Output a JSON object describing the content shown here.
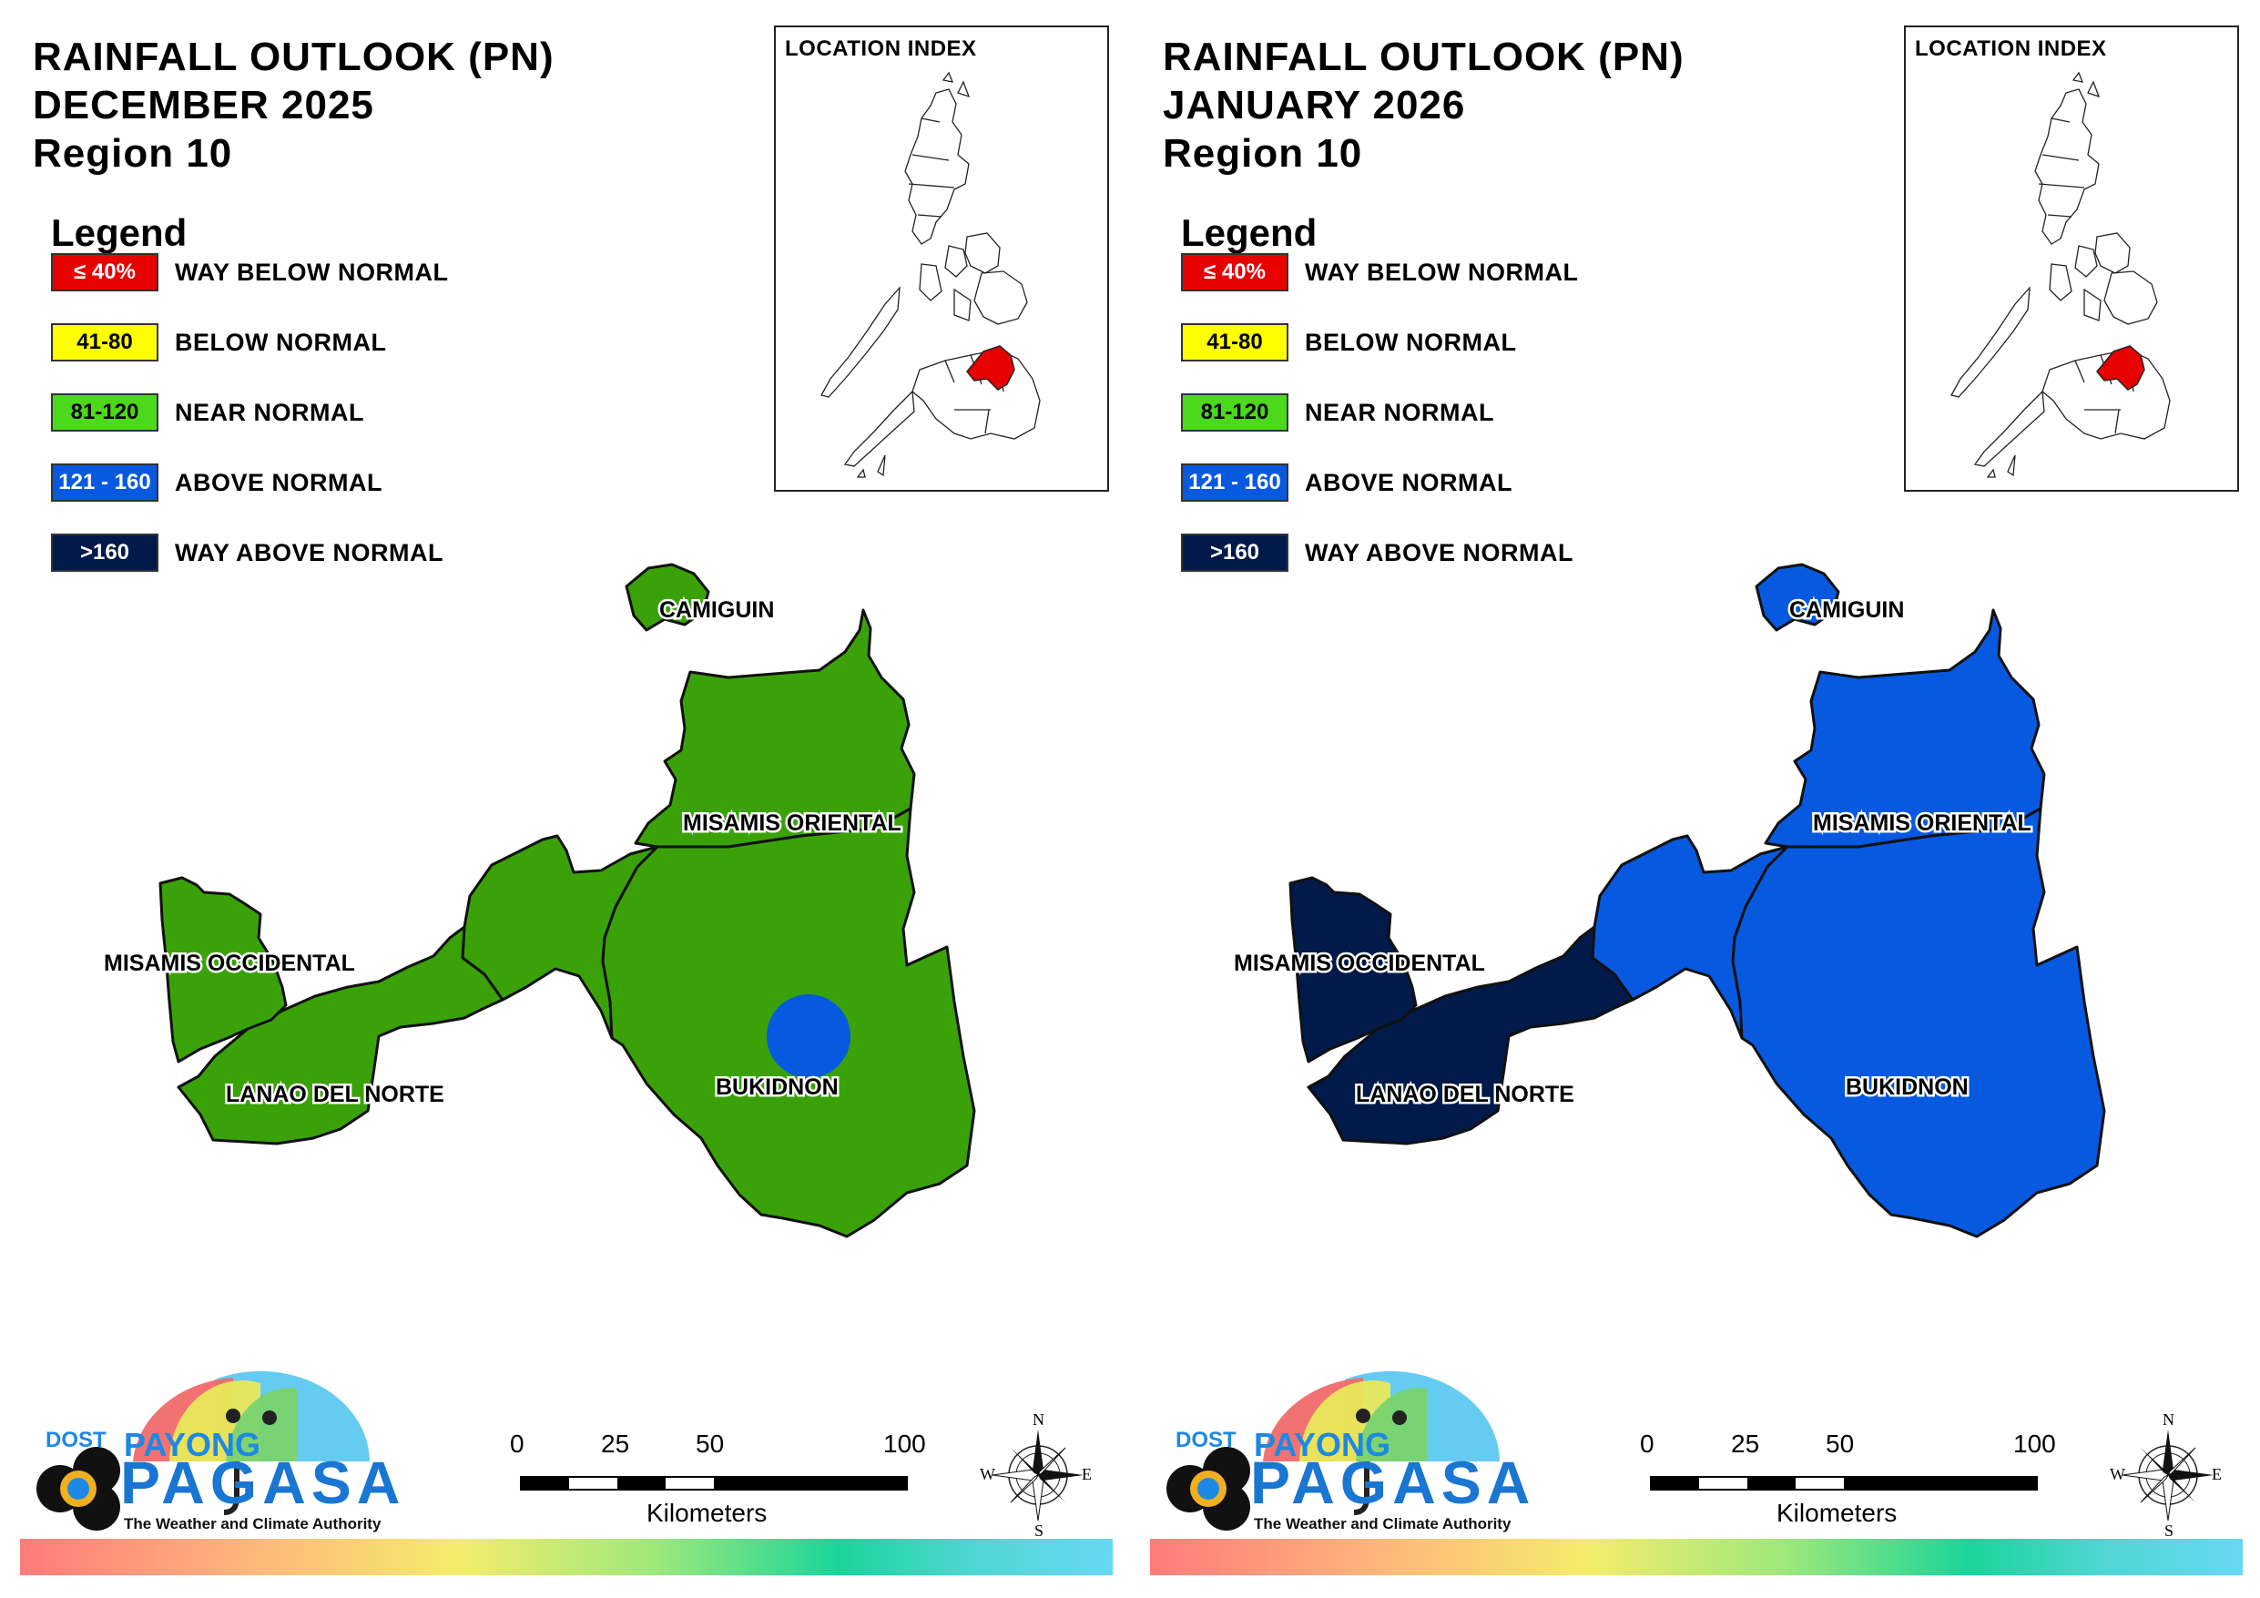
{
  "panels": [
    {
      "title_line1": "RAINFALL OUTLOOK (PN)",
      "title_line2": "DECEMBER 2025",
      "title_line3": "Region 10",
      "province_colors": {
        "camiguin": "#3aa208",
        "misamis_oriental": "#3aa208",
        "misamis_occidental": "#3aa208",
        "lanao_del_norte_w": "#3aa208",
        "lanao_del_norte_e": "#3aa208",
        "bukidnon": "#3aa208",
        "bukidnon_spot": "#0759e0"
      }
    },
    {
      "title_line1": "RAINFALL OUTLOOK (PN)",
      "title_line2": "JANUARY 2026",
      "title_line3": "Region 10",
      "province_colors": {
        "camiguin": "#0759e0",
        "misamis_oriental": "#0759e0",
        "misamis_occidental": "#011a4a",
        "lanao_del_norte_w": "#011a4a",
        "lanao_del_norte_e": "#0759e0",
        "bukidnon": "#0759e0",
        "bukidnon_spot": "#0759e0"
      }
    }
  ],
  "legend": {
    "title": "Legend",
    "items": [
      {
        "range": "≤ 40%",
        "label": "WAY BELOW NORMAL",
        "color": "#e60000",
        "text_color": "#ffffff"
      },
      {
        "range": "41-80",
        "label": "BELOW NORMAL",
        "color": "#ffff00",
        "text_color": "#000000"
      },
      {
        "range": "81-120",
        "label": "NEAR NORMAL",
        "color": "#4cd91c",
        "text_color": "#000000"
      },
      {
        "range": "121 - 160",
        "label": "ABOVE NORMAL",
        "color": "#0759e0",
        "text_color": "#ffffff"
      },
      {
        "range": ">160",
        "label": "WAY ABOVE NORMAL",
        "color": "#011a4a",
        "text_color": "#ffffff"
      }
    ]
  },
  "inset": {
    "title": "LOCATION INDEX",
    "highlight_color": "#e60000"
  },
  "province_labels": {
    "camiguin": "CAMIGUIN",
    "misamis_oriental": "MISAMIS ORIENTAL",
    "misamis_occidental": "MISAMIS OCCIDENTAL",
    "lanao_del_norte": "LANAO DEL NORTE",
    "bukidnon": "BUKIDNON"
  },
  "scale": {
    "ticks": [
      "0",
      "25",
      "50",
      "100"
    ],
    "unit": "Kilometers"
  },
  "compass": {
    "n": "N",
    "s": "S",
    "e": "E",
    "w": "W"
  },
  "logo": {
    "dost": "DOST",
    "payong": "PAYONG",
    "pagasa": "PAGASA",
    "tagline": "The Weather and Climate Authority"
  }
}
